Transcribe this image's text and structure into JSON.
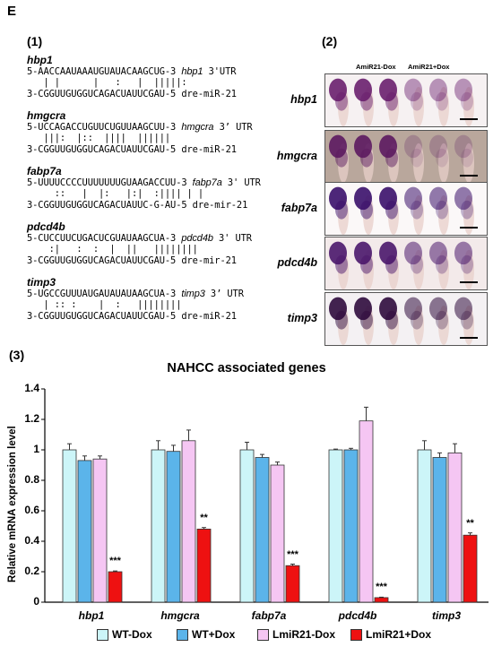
{
  "figure_letter": "E",
  "panel1": {
    "label": "(1)",
    "entries": [
      {
        "gene": "hbp1",
        "line1": "5-AACCAAUAAAUGUAUACAAGCUG-3 ",
        "target": "hbp1",
        "utr": " 3'UTR",
        "pairs": "   | |      |   :   |  |||||:",
        "line3": "3-CGGUUGUGGUCAGACUAUUCGAU-5 dre-miR-21"
      },
      {
        "gene": "hmgcra",
        "line1": "5-UCCAGACCUGUUCUGUUAAGCUU-3 ",
        "target": "hmgcra",
        "utr": " 3’ UTR",
        "pairs": "   |||:  |::  ||||  ||||||",
        "line3": "3-CGGUUGUGGUCAGACUAUUCGAU-5 dre-miR-21"
      },
      {
        "gene": "fabp7a",
        "line1": "5-UUUUCCCCUUUUUUUGUAAGACCUU-3 ",
        "target": "fabp7a",
        "utr": " 3' UTR",
        "pairs": "     ::   |  |:   |:|  :|||| | |",
        "line3": "3-CGGUUGUGGUCAGACUAUUC-G-AU-5 dre-mir-21"
      },
      {
        "gene": "pdcd4b",
        "line1": "5-CUCCUUCUGACUCGUAUAAGCUA-3 ",
        "target": "pdcd4b",
        "utr": " 3' UTR",
        "pairs": "    :|   :  :  |  ||   ||||||||",
        "line3": "3-CGGUUGUGGUCAGACUAUUCGAU-5 dre-mir-21"
      },
      {
        "gene": "timp3",
        "line1": "5-UGCCGUUUAUGAUAUAUAAGCUA-3 ",
        "target": "timp3",
        "utr": " 3’ UTR",
        "pairs": "   | :: :    |  :   ||||||||",
        "line3": "3-CGGUUGUGGUCAGACUAUUCGAU-5 dre-miR-21"
      }
    ]
  },
  "panel2": {
    "label": "(2)",
    "header_left": "AmiR21-Dox",
    "header_right": "AmiR21+Dox",
    "rows": [
      "hbp1",
      "hmgcra",
      "fabp7a",
      "pdcd4b",
      "timp3"
    ]
  },
  "panel3": {
    "label": "(3)"
  },
  "chart_data": {
    "type": "bar",
    "title": "NAHCC associated genes",
    "ylabel": "Relative mRNA expression level",
    "ylim": [
      0,
      1.4
    ],
    "yticks": [
      "0",
      "0.2",
      "0.4",
      "0.6",
      "0.8",
      "1",
      "1.2",
      "1.4"
    ],
    "categories": [
      "hbp1",
      "hmgcra",
      "fabp7a",
      "pdcd4b",
      "timp3"
    ],
    "series": [
      {
        "name": "WT-Dox",
        "color": "#ccf5f8",
        "values": [
          1.0,
          1.0,
          1.0,
          1.0,
          1.0
        ],
        "errors": [
          0.04,
          0.06,
          0.05,
          0.005,
          0.06
        ]
      },
      {
        "name": "WT+Dox",
        "color": "#5bb4ea",
        "values": [
          0.93,
          0.99,
          0.95,
          1.0,
          0.95
        ],
        "errors": [
          0.03,
          0.04,
          0.02,
          0.01,
          0.03
        ]
      },
      {
        "name": "LmiR21-Dox",
        "color": "#f5c6f3",
        "values": [
          0.94,
          1.06,
          0.9,
          1.19,
          0.98
        ],
        "errors": [
          0.02,
          0.07,
          0.02,
          0.09,
          0.06
        ]
      },
      {
        "name": "LmiR21+Dox",
        "color": "#ee1111",
        "values": [
          0.2,
          0.48,
          0.24,
          0.03,
          0.44
        ],
        "errors": [
          0.005,
          0.01,
          0.01,
          0.003,
          0.015
        ]
      }
    ],
    "significance": [
      "***",
      "**",
      "***",
      "***",
      "**"
    ],
    "legend_position": "bottom"
  }
}
